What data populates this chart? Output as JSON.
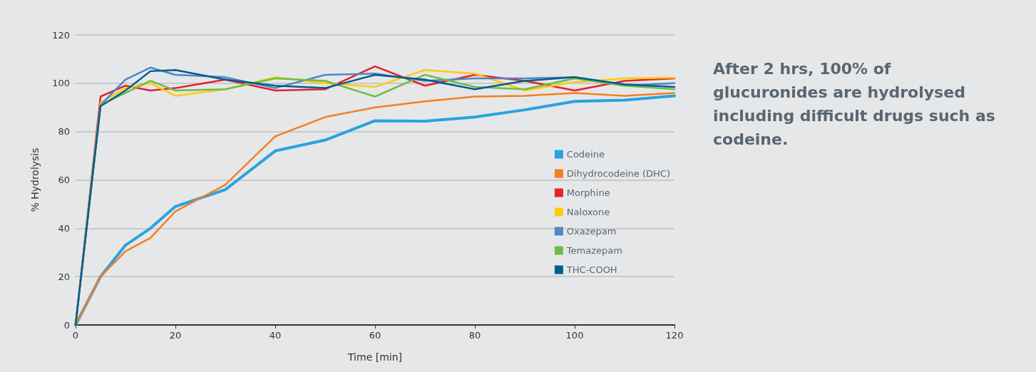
{
  "chart_data": {
    "type": "line",
    "xlabel": "Time [min]",
    "ylabel": "% Hydrolysis",
    "annotations": [
      "After 2 hrs, 100% of glucuronides are hydrolysed including difficult drugs such as codeine."
    ],
    "x": [
      0,
      5,
      10,
      15,
      20,
      30,
      40,
      50,
      60,
      70,
      80,
      90,
      100,
      110,
      120
    ],
    "series": [
      {
        "name": "Codeine",
        "color": "#29a3de",
        "values": [
          0,
          20,
          33,
          40,
          49,
          56,
          72,
          76.5,
          84.5,
          84.3,
          86,
          89,
          92.5,
          93,
          94.8
        ]
      },
      {
        "name": "Dihydrocodeine (DHC)",
        "color": "#f47f20",
        "values": [
          0,
          20,
          30.5,
          36,
          47,
          58,
          78,
          86,
          90,
          92.5,
          94.5,
          94.8,
          96,
          94.8,
          96
        ]
      },
      {
        "name": "Morphine",
        "color": "#e8202a",
        "values": [
          0,
          94.5,
          99,
          97,
          98,
          101.5,
          97,
          97.5,
          107,
          99,
          103.5,
          101,
          97,
          101,
          102
        ]
      },
      {
        "name": "Naloxone",
        "color": "#ffc90e",
        "values": [
          0,
          92,
          98,
          100,
          94.8,
          97.5,
          102.5,
          100,
          98.5,
          105.5,
          104,
          97,
          100.5,
          102,
          102.3
        ]
      },
      {
        "name": "Oxazepam",
        "color": "#4f86c6",
        "values": [
          0,
          91,
          101.5,
          106.5,
          103.5,
          102.5,
          98,
          103.5,
          104,
          101,
          102,
          102,
          102.5,
          99,
          100
        ]
      },
      {
        "name": "Temazepam",
        "color": "#6dbd45",
        "values": [
          0,
          91,
          96,
          101,
          97,
          97.5,
          102,
          101,
          94.5,
          103.5,
          98.5,
          97.5,
          102,
          99,
          97.5
        ]
      },
      {
        "name": "THC-COOH",
        "color": "#005d8f",
        "values": [
          0,
          90.5,
          97,
          105,
          105.5,
          101.5,
          99,
          98,
          103.5,
          101.5,
          97.5,
          101,
          102.5,
          99.5,
          98.5
        ]
      }
    ],
    "xlim": [
      0,
      120
    ],
    "xticks": [
      0,
      20,
      40,
      60,
      80,
      100,
      120
    ],
    "ylim": [
      0,
      120
    ],
    "yticks": [
      0,
      20,
      40,
      60,
      80,
      100,
      120
    ],
    "grid": "y",
    "legend": "right",
    "marker": "none",
    "line_style": "solid"
  }
}
